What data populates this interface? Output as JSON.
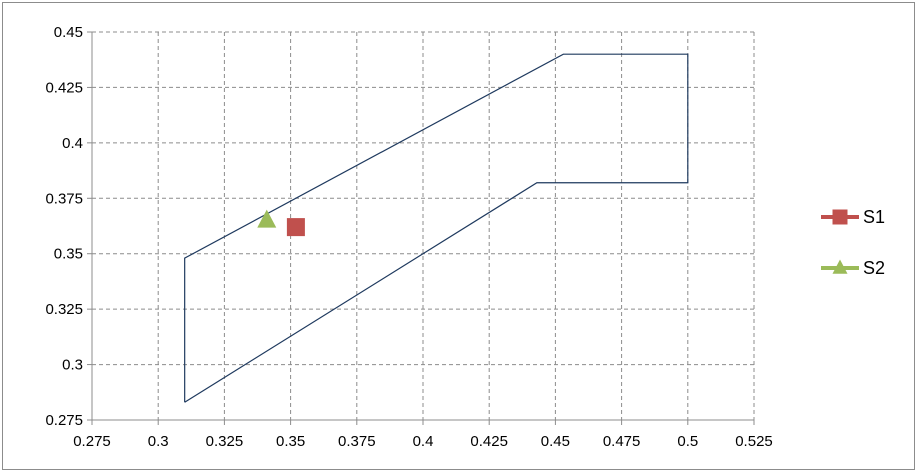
{
  "chart_data": {
    "type": "scatter",
    "title": "",
    "xlabel": "",
    "ylabel": "",
    "xlim": [
      0.275,
      0.525
    ],
    "ylim": [
      0.275,
      0.45
    ],
    "xticks": [
      "0.275",
      "0.3",
      "0.325",
      "0.35",
      "0.375",
      "0.4",
      "0.425",
      "0.45",
      "0.475",
      "0.5",
      "0.525"
    ],
    "yticks": [
      "0.45",
      "0.425",
      "0.4",
      "0.375",
      "0.35",
      "0.325",
      "0.3",
      "0.275"
    ],
    "grid": true,
    "legend_position": "right",
    "boundary": {
      "color": "#1f3a5f",
      "points": [
        {
          "x": 0.31,
          "y": 0.283
        },
        {
          "x": 0.31,
          "y": 0.348
        },
        {
          "x": 0.453,
          "y": 0.44
        },
        {
          "x": 0.5,
          "y": 0.44
        },
        {
          "x": 0.5,
          "y": 0.382
        },
        {
          "x": 0.443,
          "y": 0.382
        },
        {
          "x": 0.31,
          "y": 0.283
        }
      ]
    },
    "series": [
      {
        "name": "S1",
        "marker": "square",
        "color": "#c0504d",
        "points": [
          {
            "x": 0.352,
            "y": 0.362
          }
        ]
      },
      {
        "name": "S2",
        "marker": "triangle",
        "color": "#9bbb59",
        "points": [
          {
            "x": 0.341,
            "y": 0.365
          }
        ]
      }
    ]
  }
}
